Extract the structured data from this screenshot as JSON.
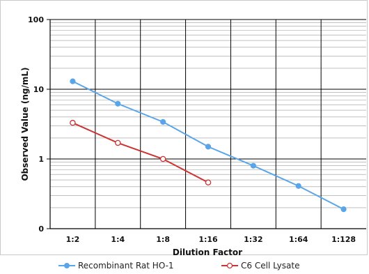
{
  "chart_data": {
    "type": "line",
    "xlabel": "Dilution Factor",
    "ylabel": "Observed Value (ng/mL)",
    "categories": [
      "1:2",
      "1:4",
      "1:8",
      "1:16",
      "1:32",
      "1:64",
      "1:128"
    ],
    "y_scale": "log",
    "y_ticks": [
      {
        "value": 0.1,
        "label": "0"
      },
      {
        "value": 1,
        "label": "1"
      },
      {
        "value": 10,
        "label": "10"
      },
      {
        "value": 100,
        "label": "100"
      }
    ],
    "ylim": [
      0.1,
      100
    ],
    "grid": true,
    "legend_position": "bottom",
    "series": [
      {
        "name": "Recombinant Rat HO-1",
        "color": "#5aa5ea",
        "marker": "filled-circle",
        "values": [
          13,
          6.2,
          3.4,
          1.5,
          0.8,
          0.41,
          0.19
        ]
      },
      {
        "name": "C6 Cell Lysate",
        "color": "#cc3333",
        "marker": "open-circle",
        "values": [
          3.3,
          1.7,
          1.0,
          0.46,
          null,
          null,
          null
        ]
      }
    ]
  }
}
